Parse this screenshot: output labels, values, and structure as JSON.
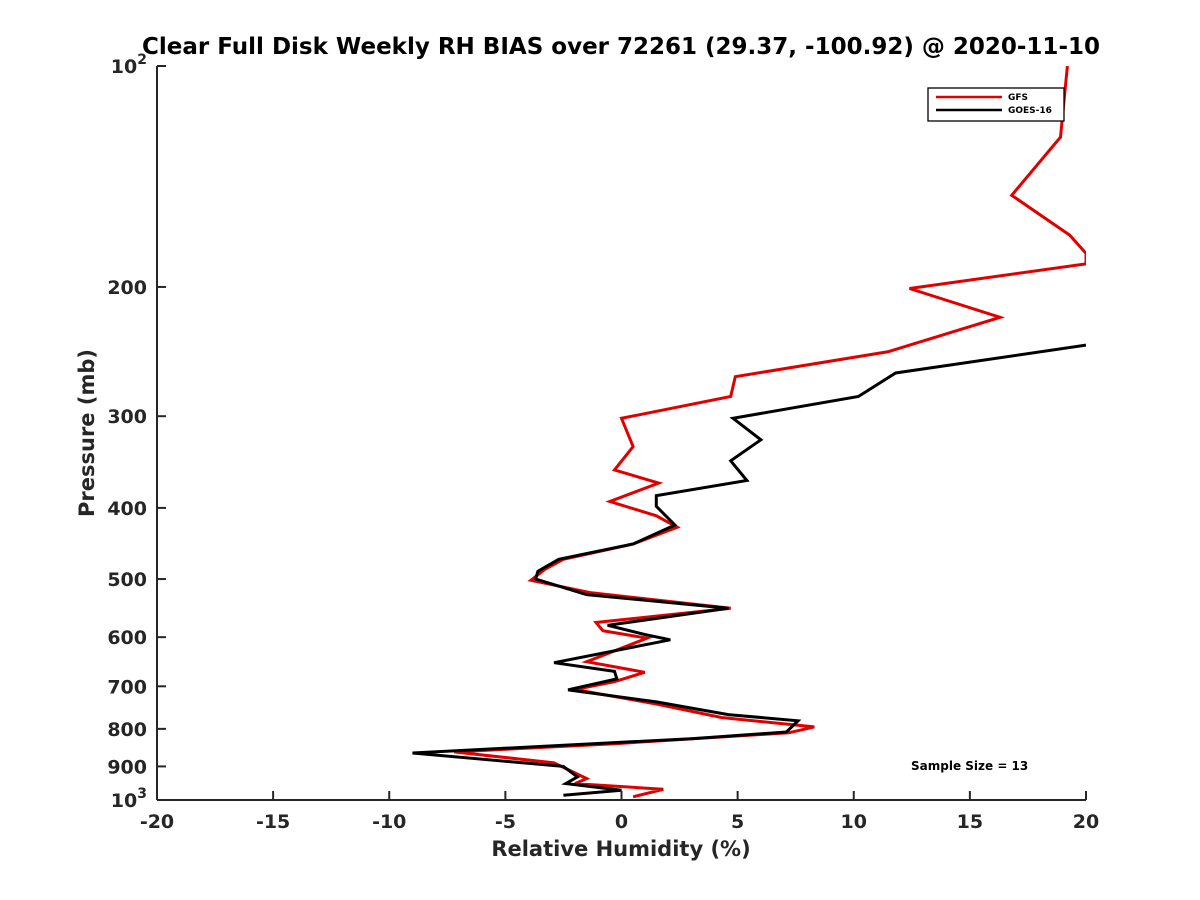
{
  "chart_data": {
    "type": "line",
    "title": "Clear Full Disk Weekly RH BIAS over 72261 (29.37, -100.92) @ 2020-11-10",
    "xlabel": "Relative Humidity (%)",
    "ylabel": "Pressure (mb)",
    "xlim": [
      -20,
      20
    ],
    "ylim": [
      100,
      1000
    ],
    "y_scale": "log",
    "y_reversed": true,
    "x_ticks": [
      "-20",
      "-15",
      "-10",
      "-5",
      "0",
      "5",
      "10",
      "15",
      "20"
    ],
    "y_ticks": [
      {
        "value": 100,
        "label": "10",
        "sup": "2"
      },
      {
        "value": 200,
        "label": "200"
      },
      {
        "value": 300,
        "label": "300"
      },
      {
        "value": 400,
        "label": "400"
      },
      {
        "value": 500,
        "label": "500"
      },
      {
        "value": 600,
        "label": "600"
      },
      {
        "value": 700,
        "label": "700"
      },
      {
        "value": 800,
        "label": "800"
      },
      {
        "value": 900,
        "label": "900"
      },
      {
        "value": 1000,
        "label": "10",
        "sup": "3"
      }
    ],
    "legend_position": "top-right",
    "grid": false,
    "annotation": "Sample Size = 13",
    "series": [
      {
        "name": "GFS",
        "color": "#e00000",
        "points": [
          [
            19.2,
            100
          ],
          [
            18.9,
            125
          ],
          [
            16.8,
            150
          ],
          [
            19.3,
            170
          ],
          [
            20.0,
            180
          ],
          [
            20.0,
            186
          ],
          [
            12.4,
            201
          ],
          [
            16.3,
            220
          ],
          [
            11.5,
            245
          ],
          [
            4.9,
            265
          ],
          [
            4.7,
            282
          ],
          [
            0.0,
            302
          ],
          [
            0.5,
            330
          ],
          [
            -0.3,
            355
          ],
          [
            1.6,
            370
          ],
          [
            -0.5,
            392
          ],
          [
            1.5,
            410
          ],
          [
            2.4,
            425
          ],
          [
            0.5,
            448
          ],
          [
            -2.5,
            470
          ],
          [
            -3.3,
            485
          ],
          [
            -3.9,
            502
          ],
          [
            -1.3,
            522
          ],
          [
            4.7,
            548
          ],
          [
            -1.1,
            573
          ],
          [
            -0.8,
            588
          ],
          [
            1.1,
            602
          ],
          [
            -1.5,
            648
          ],
          [
            1.0,
            670
          ],
          [
            -0.3,
            690
          ],
          [
            -2.0,
            707
          ],
          [
            1.5,
            740
          ],
          [
            4.3,
            772
          ],
          [
            8.3,
            795
          ],
          [
            7.2,
            810
          ],
          [
            -0.3,
            838
          ],
          [
            -7.2,
            860
          ],
          [
            -2.9,
            890
          ],
          [
            -1.5,
            935
          ],
          [
            -2.0,
            950
          ],
          [
            1.8,
            967
          ],
          [
            0.5,
            990
          ]
        ]
      },
      {
        "name": "GOES-16",
        "color": "#000000",
        "points": [
          [
            20.0,
            240
          ],
          [
            11.8,
            262
          ],
          [
            10.2,
            282
          ],
          [
            4.8,
            302
          ],
          [
            6.0,
            323
          ],
          [
            4.7,
            345
          ],
          [
            5.4,
            367
          ],
          [
            1.5,
            385
          ],
          [
            1.5,
            398
          ],
          [
            2.3,
            422
          ],
          [
            0.5,
            448
          ],
          [
            -2.7,
            470
          ],
          [
            -3.6,
            488
          ],
          [
            -3.7,
            500
          ],
          [
            -1.5,
            525
          ],
          [
            4.6,
            548
          ],
          [
            -0.6,
            578
          ],
          [
            1.0,
            595
          ],
          [
            2.1,
            605
          ],
          [
            -2.9,
            650
          ],
          [
            -0.3,
            668
          ],
          [
            -0.2,
            684
          ],
          [
            -2.3,
            708
          ],
          [
            1.5,
            735
          ],
          [
            4.6,
            765
          ],
          [
            7.6,
            780
          ],
          [
            7.1,
            808
          ],
          [
            3.0,
            825
          ],
          [
            -9.0,
            863
          ],
          [
            -2.5,
            900
          ],
          [
            -1.9,
            930
          ],
          [
            -2.4,
            950
          ],
          [
            0.0,
            970
          ],
          [
            -2.5,
            985
          ]
        ]
      }
    ]
  }
}
